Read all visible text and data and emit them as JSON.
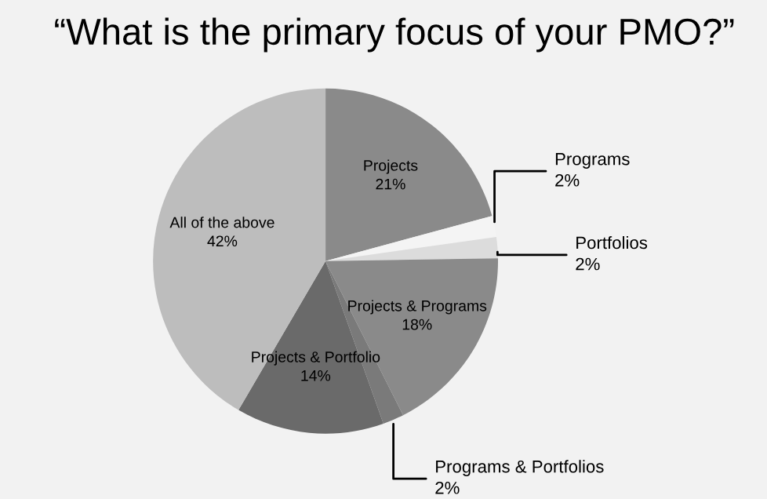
{
  "chart_data": {
    "type": "pie",
    "title": "“What is the primary focus of your PMO?”",
    "categories": [
      "Projects",
      "Programs",
      "Portfolios",
      "Projects & Programs",
      "Programs & Portfolios",
      "Projects & Portfolio",
      "All of the above"
    ],
    "values": [
      21,
      2,
      2,
      18,
      2,
      14,
      42
    ],
    "value_labels": [
      "21%",
      "2%",
      "2%",
      "18%",
      "2%",
      "14%",
      "42%"
    ],
    "colors": [
      "#8a8a8a",
      "#f4f4f4",
      "#dcdcdc",
      "#8a8a8a",
      "#7a7a7a",
      "#6a6a6a",
      "#bdbdbd"
    ]
  }
}
